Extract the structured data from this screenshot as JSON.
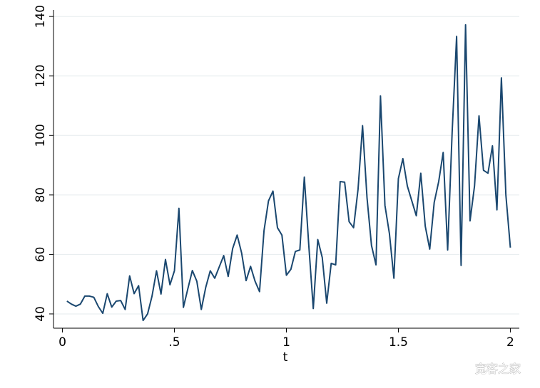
{
  "chart_data": {
    "type": "line",
    "x_label": "t",
    "x": [
      0.02,
      0.04,
      0.06,
      0.08,
      0.1,
      0.12,
      0.14,
      0.16,
      0.18,
      0.2,
      0.22,
      0.24,
      0.26,
      0.28,
      0.3,
      0.32,
      0.34,
      0.36,
      0.38,
      0.4,
      0.42,
      0.44,
      0.46,
      0.48,
      0.5,
      0.52,
      0.54,
      0.56,
      0.58,
      0.6,
      0.62,
      0.64,
      0.66,
      0.68,
      0.7,
      0.72,
      0.74,
      0.76,
      0.78,
      0.8,
      0.82,
      0.84,
      0.86,
      0.88,
      0.9,
      0.92,
      0.94,
      0.96,
      0.98,
      1.0,
      1.02,
      1.04,
      1.06,
      1.08,
      1.1,
      1.12,
      1.14,
      1.16,
      1.18,
      1.2,
      1.22,
      1.24,
      1.26,
      1.28,
      1.3,
      1.32,
      1.34,
      1.36,
      1.38,
      1.4,
      1.42,
      1.44,
      1.46,
      1.48,
      1.5,
      1.52,
      1.54,
      1.56,
      1.58,
      1.6,
      1.62,
      1.64,
      1.66,
      1.68,
      1.7,
      1.72,
      1.74,
      1.76,
      1.78,
      1.8,
      1.82,
      1.84,
      1.86,
      1.88,
      1.9,
      1.92,
      1.94,
      1.96,
      1.98,
      2.0
    ],
    "values": [
      44.3,
      43.3,
      42.6,
      43.3,
      46,
      46,
      45.6,
      42.5,
      40.2,
      46.8,
      42.3,
      44.3,
      44.5,
      41.5,
      52.8,
      46.8,
      49.5,
      37.8,
      40,
      46,
      54.5,
      46.7,
      58.3,
      49.8,
      54.5,
      75.5,
      42.2,
      48.5,
      54.6,
      51,
      41.5,
      49,
      54.5,
      52,
      55.8,
      59.6,
      52.6,
      62,
      66.5,
      60.5,
      51.2,
      56,
      51,
      47.5,
      68,
      78,
      81.3,
      69,
      66.5,
      53,
      55,
      61,
      61.5,
      86,
      63,
      41.8,
      65,
      59,
      43.6,
      57,
      56.5,
      84.5,
      84.3,
      71,
      69,
      82,
      103.3,
      79,
      63,
      56.5,
      113.3,
      76.5,
      67,
      52,
      85.5,
      92.2,
      83,
      78,
      73,
      87.3,
      69.5,
      61.8,
      77.5,
      84.5,
      94.3,
      61.5,
      101,
      133.3,
      56.3,
      137.2,
      71.3,
      83,
      106.6,
      88.3,
      87.3,
      96.5,
      75,
      119.4,
      80,
      62.3
    ],
    "color": "#1a476f",
    "xlim": [
      -0.04,
      2.04
    ],
    "xticks": [
      0,
      {
        "value": 0.5,
        "label": ".5"
      },
      1,
      1.5,
      2
    ],
    "ylim": [
      35.2,
      142.2
    ],
    "yticks": [
      40,
      60,
      80,
      100,
      120,
      140
    ],
    "grid": true
  },
  "watermark": "宽客之家"
}
